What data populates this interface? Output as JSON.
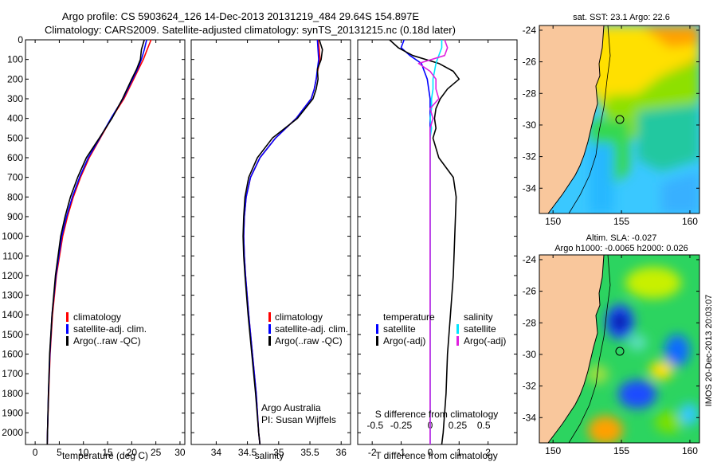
{
  "header": {
    "line1": "Argo profile: CS 5903624_126 14-Dec-2013 20131219_484 29.64S 154.897E",
    "line2": "Climatology: CARS2009. Satellite-adjusted climatology: synTS_20131215.nc (0.18d later)"
  },
  "colors": {
    "climatology": "#ff0000",
    "satellite": "#0000ff",
    "argo": "#000000",
    "satellite_salinity": "#00e5ff",
    "argo_salinity": "#e020e0",
    "land": "#f9c79c"
  },
  "legend_labels": {
    "climatology": "climatology",
    "satellite": "satellite-adj. clim.",
    "argo": "Argo(..raw -QC)",
    "temperature_header": "temperature",
    "salinity_header": "salinity",
    "sat": "satellite",
    "argo_adj": "Argo(-adj)"
  },
  "annotations": {
    "org": "Argo Australia",
    "pi": "PI: Susan Wijffels",
    "timestamp": "IMOS 20-Dec-2013 20:03:07"
  },
  "chart_data": [
    {
      "type": "line",
      "id": "temperature_profile",
      "xlabel": "temperature (deg C)",
      "ylabel": "",
      "xlim": [
        -2,
        31
      ],
      "ylim": [
        2060,
        0
      ],
      "xticks": [
        0,
        5,
        10,
        15,
        20,
        25,
        30
      ],
      "yticks": [
        0,
        100,
        200,
        300,
        400,
        500,
        600,
        700,
        800,
        900,
        1000,
        1100,
        1200,
        1300,
        1400,
        1500,
        1600,
        1700,
        1800,
        1900,
        2000
      ],
      "depth": [
        0,
        50,
        100,
        150,
        200,
        300,
        400,
        500,
        600,
        700,
        800,
        900,
        1000,
        1200,
        1400,
        1600,
        1800,
        2000,
        2060
      ],
      "series": [
        {
          "name": "climatology",
          "values": [
            24.0,
            23.2,
            22.4,
            21.4,
            20.4,
            18.4,
            15.8,
            13.5,
            11.2,
            9.4,
            7.9,
            6.7,
            5.7,
            4.4,
            3.6,
            3.1,
            2.8,
            2.55,
            2.5
          ]
        },
        {
          "name": "satellite-adj. clim.",
          "values": [
            23.1,
            22.6,
            22.0,
            21.2,
            20.2,
            18.2,
            15.7,
            13.4,
            11.0,
            9.2,
            7.7,
            6.5,
            5.5,
            4.3,
            3.5,
            3.05,
            2.75,
            2.55,
            2.5
          ]
        },
        {
          "name": "Argo(..raw -QC)",
          "values": [
            22.6,
            22.0,
            21.8,
            21.0,
            20.0,
            18.1,
            15.9,
            13.3,
            10.6,
            8.8,
            7.3,
            6.2,
            5.3,
            4.2,
            3.5,
            3.0,
            2.75,
            2.55,
            2.5
          ]
        }
      ]
    },
    {
      "type": "line",
      "id": "salinity_profile",
      "xlabel": "salinity",
      "xlim": [
        33.6,
        36.15
      ],
      "ylim": [
        2060,
        0
      ],
      "xticks": [
        34,
        34.5,
        35,
        35.5,
        36
      ],
      "depth": [
        0,
        50,
        100,
        150,
        200,
        250,
        300,
        400,
        500,
        600,
        700,
        800,
        900,
        1000,
        1100,
        1200,
        1400,
        1600,
        1800,
        2000,
        2060
      ],
      "series": [
        {
          "name": "climatology",
          "values": [
            35.63,
            35.65,
            35.66,
            35.63,
            35.6,
            35.57,
            35.52,
            35.28,
            34.95,
            34.7,
            34.55,
            34.48,
            34.45,
            34.44,
            34.45,
            34.47,
            34.52,
            34.58,
            34.64,
            34.68,
            34.7
          ]
        },
        {
          "name": "satellite-adj. clim.",
          "values": [
            35.62,
            35.63,
            35.64,
            35.62,
            35.6,
            35.57,
            35.52,
            35.28,
            34.95,
            34.7,
            34.55,
            34.48,
            34.45,
            34.44,
            34.45,
            34.47,
            34.52,
            34.58,
            34.64,
            34.68,
            34.7
          ]
        },
        {
          "name": "Argo(..raw -QC)",
          "values": [
            35.65,
            35.7,
            35.68,
            35.62,
            35.63,
            35.6,
            35.55,
            35.3,
            34.9,
            34.66,
            34.52,
            34.46,
            34.44,
            34.43,
            34.44,
            34.46,
            34.51,
            34.57,
            34.63,
            34.68,
            34.7
          ]
        }
      ]
    },
    {
      "type": "line",
      "id": "difference_profile",
      "xlabel": "T difference from climatology",
      "xlabel_top": "S difference from climatology",
      "xlim": [
        -2.5,
        3
      ],
      "xticks": [
        -2,
        -1,
        0,
        1,
        2
      ],
      "xticks_top_labels": [
        "-0.5",
        "-0.25",
        "0",
        "0.25",
        "0.5"
      ],
      "xticks_top_values": [
        -1.9,
        -1.0,
        0,
        0.95,
        1.85
      ],
      "ylim": [
        2060,
        0
      ],
      "depth": [
        0,
        40,
        80,
        120,
        160,
        200,
        250,
        300,
        350,
        400,
        450,
        500,
        600,
        700,
        800,
        1000,
        1200,
        1400,
        1600,
        1800,
        2000,
        2060
      ],
      "series": [
        {
          "name": "temperature satellite",
          "values": [
            -0.9,
            -1.0,
            -0.7,
            -0.3,
            -0.2,
            -0.1,
            -0.05,
            0.0,
            0.0,
            0.0,
            0.0,
            0.0,
            0.0,
            0.0,
            0.0,
            0.0,
            0.0,
            0.0,
            0.0,
            0.0,
            0.0,
            0.0
          ]
        },
        {
          "name": "temperature Argo(-adj)",
          "values": [
            -1.4,
            -1.1,
            -0.6,
            0.3,
            0.8,
            1.0,
            0.6,
            0.35,
            0.2,
            0.15,
            0.2,
            0.1,
            0.3,
            0.8,
            0.9,
            0.85,
            0.8,
            0.7,
            0.6,
            0.55,
            0.45,
            0.4
          ]
        },
        {
          "name": "salinity satellite",
          "values": [
            0.4,
            0.4,
            0.3,
            0.2,
            0.15,
            0.1,
            0.1,
            0.05,
            0.05,
            0.0,
            0.05,
            0.0,
            0.0,
            0.0,
            0.0,
            0.0,
            0.0,
            0.0,
            0.0,
            0.0,
            0.0,
            0.0
          ]
        },
        {
          "name": "salinity Argo(-adj)",
          "values": [
            0.5,
            0.6,
            0.5,
            -0.4,
            0.0,
            0.2,
            0.2,
            0.3,
            0.0,
            0.1,
            0.0,
            0.0,
            0.0,
            0.0,
            0.0,
            0.0,
            0.0,
            0.0,
            0.0,
            0.0,
            0.0,
            0.0
          ]
        }
      ]
    },
    {
      "type": "heatmap",
      "id": "sst_map",
      "title": "sat. SST: 23.1  Argo: 22.6",
      "xlim": [
        149,
        160.7
      ],
      "ylim": [
        -35.6,
        -23.7
      ],
      "xticks": [
        150,
        155,
        160
      ],
      "yticks": [
        -24,
        -26,
        -28,
        -30,
        -32,
        -34
      ],
      "profile_location": {
        "lon": 154.897,
        "lat": -29.64
      }
    },
    {
      "type": "heatmap",
      "id": "sla_map",
      "title_line1": "Altim. SLA: -0.027",
      "title_line2": "Argo h1000: -0.0065  h2000: 0.026",
      "xlim": [
        149,
        160.7
      ],
      "ylim": [
        -35.6,
        -23.7
      ],
      "xticks": [
        150,
        155,
        160
      ],
      "yticks": [
        -24,
        -26,
        -28,
        -30,
        -32,
        -34
      ],
      "profile_location": {
        "lon": 154.897,
        "lat": -29.64
      }
    }
  ]
}
